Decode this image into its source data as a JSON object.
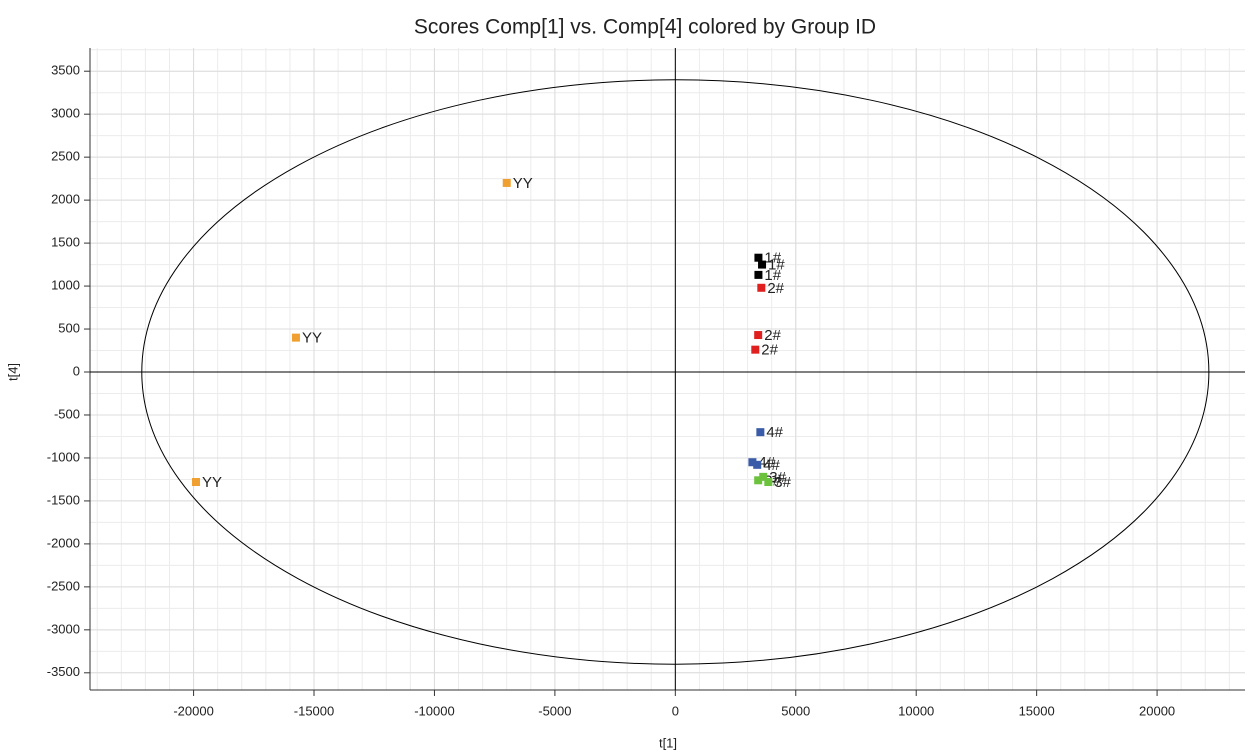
{
  "chart_data": {
    "type": "scatter",
    "title": "Scores Comp[1] vs. Comp[4] colored by Group ID",
    "x_label": "t[1]",
    "y_label": "t[4]",
    "xlim": [
      -24300,
      23650
    ],
    "ylim": [
      -3700,
      3770
    ],
    "xticks": [
      -20000,
      -15000,
      -10000,
      -5000,
      0,
      5000,
      10000,
      15000,
      20000
    ],
    "yticks": [
      -3500,
      -3000,
      -2500,
      -2000,
      -1500,
      -1000,
      -500,
      0,
      500,
      1000,
      1500,
      2000,
      2500,
      3000,
      3500
    ],
    "grid": true,
    "legend": false,
    "ellipse": {
      "x_radius": 22150,
      "y_radius": 3400
    },
    "series": [
      {
        "name": "YY",
        "color": "#f0a030",
        "x": [
          -7000,
          -15750,
          -19900
        ],
        "y": [
          2200,
          400,
          -1280
        ]
      },
      {
        "name": "1#",
        "color": "#000000",
        "x": [
          3450,
          3600,
          3450
        ],
        "y": [
          1330,
          1250,
          1130
        ]
      },
      {
        "name": "2#",
        "color": "#e0201e",
        "x": [
          3570,
          3440,
          3320
        ],
        "y": [
          980,
          430,
          260
        ]
      },
      {
        "name": "4#",
        "color": "#3a5ba8",
        "x": [
          3530,
          3200,
          3400
        ],
        "y": [
          -700,
          -1050,
          -1080
        ]
      },
      {
        "name": "3#",
        "color": "#6cc23c",
        "x": [
          3440,
          3650,
          3860
        ],
        "y": [
          -1260,
          -1220,
          -1280
        ]
      }
    ]
  }
}
